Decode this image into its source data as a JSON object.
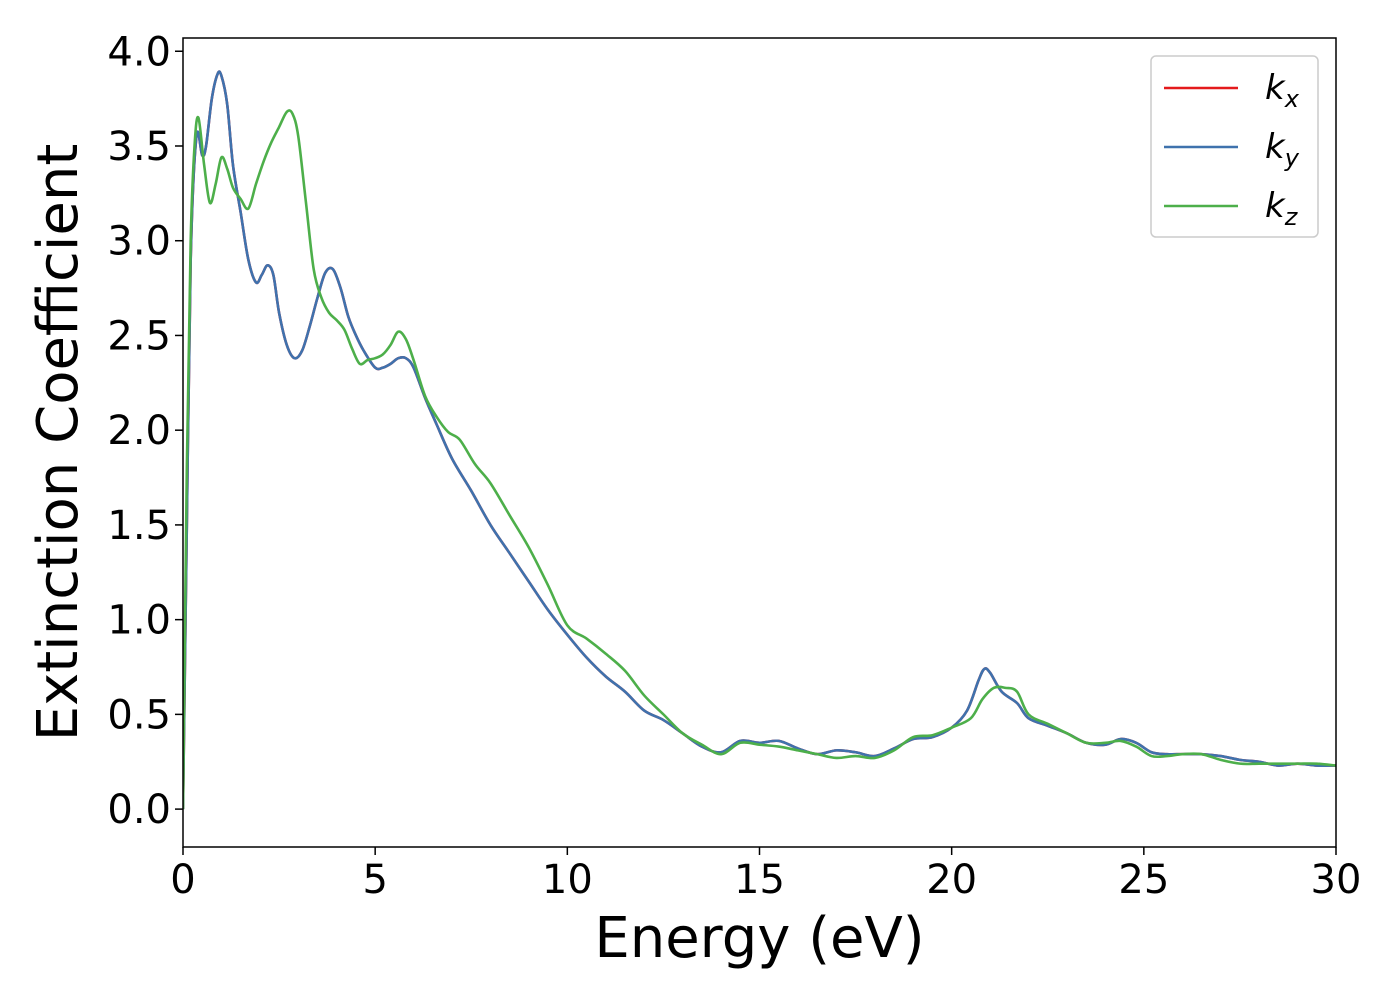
{
  "chart_data": {
    "type": "line",
    "xlabel": "Energy (eV)",
    "ylabel": "Extinction Coefficient",
    "xlim": [
      0,
      30
    ],
    "ylim": [
      -0.2,
      4.07
    ],
    "xticks": [
      0,
      5,
      10,
      15,
      20,
      25,
      30
    ],
    "xtick_labels": [
      "0",
      "5",
      "10",
      "15",
      "20",
      "25",
      "30"
    ],
    "yticks": [
      0.0,
      0.5,
      1.0,
      1.5,
      2.0,
      2.5,
      3.0,
      3.5,
      4.0
    ],
    "ytick_labels": [
      "0.0",
      "0.5",
      "1.0",
      "1.5",
      "2.0",
      "2.5",
      "3.0",
      "3.5",
      "4.0"
    ],
    "grid": false,
    "legend_position": "top-right",
    "series": [
      {
        "name": "k",
        "subscript": "x",
        "color": "#e41a1c",
        "x": [
          0,
          0.1,
          0.2,
          0.35,
          0.5,
          0.6,
          0.75,
          0.9,
          1.0,
          1.15,
          1.3,
          1.5,
          1.7,
          1.9,
          2.05,
          2.2,
          2.35,
          2.5,
          2.7,
          2.9,
          3.1,
          3.3,
          3.5,
          3.7,
          3.9,
          4.1,
          4.3,
          4.5,
          4.7,
          5.0,
          5.2,
          5.4,
          5.6,
          5.8,
          6.0,
          6.3,
          6.6,
          7.0,
          7.5,
          8.0,
          8.5,
          9.0,
          9.5,
          10.0,
          10.5,
          11.0,
          11.5,
          12.0,
          12.5,
          13.0,
          13.5,
          14.0,
          14.5,
          15.0,
          15.5,
          16.0,
          16.5,
          17.0,
          17.5,
          18.0,
          18.5,
          19.0,
          19.5,
          20.0,
          20.4,
          20.7,
          20.85,
          21.0,
          21.3,
          21.7,
          22.0,
          22.5,
          23.0,
          23.5,
          24.0,
          24.4,
          24.8,
          25.2,
          25.6,
          26.0,
          26.5,
          27.0,
          27.5,
          28.0,
          28.5,
          29.0,
          29.5,
          30.0
        ],
        "y": [
          0.0,
          1.5,
          2.9,
          3.55,
          3.45,
          3.5,
          3.75,
          3.88,
          3.87,
          3.72,
          3.4,
          3.15,
          2.9,
          2.78,
          2.82,
          2.87,
          2.82,
          2.62,
          2.45,
          2.38,
          2.42,
          2.55,
          2.7,
          2.83,
          2.85,
          2.75,
          2.6,
          2.5,
          2.42,
          2.33,
          2.33,
          2.35,
          2.38,
          2.38,
          2.33,
          2.17,
          2.03,
          1.85,
          1.68,
          1.5,
          1.35,
          1.2,
          1.05,
          0.92,
          0.8,
          0.7,
          0.62,
          0.52,
          0.47,
          0.4,
          0.33,
          0.3,
          0.36,
          0.35,
          0.36,
          0.32,
          0.29,
          0.31,
          0.3,
          0.28,
          0.32,
          0.37,
          0.38,
          0.43,
          0.52,
          0.68,
          0.74,
          0.72,
          0.62,
          0.56,
          0.48,
          0.44,
          0.4,
          0.35,
          0.34,
          0.37,
          0.35,
          0.3,
          0.29,
          0.29,
          0.29,
          0.28,
          0.26,
          0.25,
          0.23,
          0.24,
          0.23,
          0.23
        ]
      },
      {
        "name": "k",
        "subscript": "y",
        "color": "#3f72ad",
        "x": [
          0,
          0.1,
          0.2,
          0.35,
          0.5,
          0.6,
          0.75,
          0.9,
          1.0,
          1.15,
          1.3,
          1.5,
          1.7,
          1.9,
          2.05,
          2.2,
          2.35,
          2.5,
          2.7,
          2.9,
          3.1,
          3.3,
          3.5,
          3.7,
          3.9,
          4.1,
          4.3,
          4.5,
          4.7,
          5.0,
          5.2,
          5.4,
          5.6,
          5.8,
          6.0,
          6.3,
          6.6,
          7.0,
          7.5,
          8.0,
          8.5,
          9.0,
          9.5,
          10.0,
          10.5,
          11.0,
          11.5,
          12.0,
          12.5,
          13.0,
          13.5,
          14.0,
          14.5,
          15.0,
          15.5,
          16.0,
          16.5,
          17.0,
          17.5,
          18.0,
          18.5,
          19.0,
          19.5,
          20.0,
          20.4,
          20.7,
          20.85,
          21.0,
          21.3,
          21.7,
          22.0,
          22.5,
          23.0,
          23.5,
          24.0,
          24.4,
          24.8,
          25.2,
          25.6,
          26.0,
          26.5,
          27.0,
          27.5,
          28.0,
          28.5,
          29.0,
          29.5,
          30.0
        ],
        "y": [
          0.0,
          1.5,
          2.9,
          3.55,
          3.45,
          3.5,
          3.75,
          3.88,
          3.87,
          3.72,
          3.4,
          3.15,
          2.9,
          2.78,
          2.82,
          2.87,
          2.82,
          2.62,
          2.45,
          2.38,
          2.42,
          2.55,
          2.7,
          2.83,
          2.85,
          2.75,
          2.6,
          2.5,
          2.42,
          2.33,
          2.33,
          2.35,
          2.38,
          2.38,
          2.33,
          2.17,
          2.03,
          1.85,
          1.68,
          1.5,
          1.35,
          1.2,
          1.05,
          0.92,
          0.8,
          0.7,
          0.62,
          0.52,
          0.47,
          0.4,
          0.33,
          0.3,
          0.36,
          0.35,
          0.36,
          0.32,
          0.29,
          0.31,
          0.3,
          0.28,
          0.32,
          0.37,
          0.38,
          0.43,
          0.52,
          0.68,
          0.74,
          0.72,
          0.62,
          0.56,
          0.48,
          0.44,
          0.4,
          0.35,
          0.34,
          0.37,
          0.35,
          0.3,
          0.29,
          0.29,
          0.29,
          0.28,
          0.26,
          0.25,
          0.23,
          0.24,
          0.23,
          0.23
        ]
      },
      {
        "name": "k",
        "subscript": "z",
        "color": "#4daf4a",
        "x": [
          0,
          0.1,
          0.2,
          0.3,
          0.4,
          0.55,
          0.7,
          0.85,
          1.0,
          1.15,
          1.3,
          1.5,
          1.7,
          1.9,
          2.1,
          2.3,
          2.5,
          2.7,
          2.85,
          3.0,
          3.2,
          3.4,
          3.6,
          3.8,
          4.0,
          4.2,
          4.4,
          4.6,
          4.8,
          5.0,
          5.2,
          5.4,
          5.6,
          5.8,
          6.0,
          6.3,
          6.6,
          6.9,
          7.2,
          7.6,
          8.0,
          8.5,
          9.0,
          9.5,
          10.0,
          10.5,
          11.0,
          11.5,
          12.0,
          12.5,
          13.0,
          13.5,
          14.0,
          14.5,
          15.0,
          15.5,
          16.0,
          16.5,
          17.0,
          17.5,
          18.0,
          18.5,
          19.0,
          19.5,
          20.0,
          20.5,
          20.8,
          21.1,
          21.4,
          21.7,
          22.0,
          22.5,
          23.0,
          23.5,
          24.0,
          24.4,
          24.8,
          25.2,
          25.6,
          26.0,
          26.5,
          27.0,
          27.5,
          28.0,
          28.5,
          29.0,
          29.5,
          30.0
        ],
        "y": [
          0.0,
          1.8,
          3.0,
          3.5,
          3.65,
          3.4,
          3.2,
          3.3,
          3.44,
          3.38,
          3.28,
          3.22,
          3.17,
          3.3,
          3.42,
          3.52,
          3.6,
          3.68,
          3.67,
          3.55,
          3.2,
          2.85,
          2.7,
          2.62,
          2.58,
          2.53,
          2.43,
          2.35,
          2.37,
          2.38,
          2.4,
          2.45,
          2.52,
          2.48,
          2.37,
          2.18,
          2.07,
          1.99,
          1.95,
          1.82,
          1.72,
          1.55,
          1.38,
          1.18,
          0.97,
          0.9,
          0.82,
          0.73,
          0.6,
          0.5,
          0.4,
          0.34,
          0.29,
          0.35,
          0.34,
          0.33,
          0.31,
          0.29,
          0.27,
          0.28,
          0.27,
          0.31,
          0.38,
          0.39,
          0.43,
          0.48,
          0.58,
          0.64,
          0.64,
          0.62,
          0.5,
          0.45,
          0.4,
          0.35,
          0.35,
          0.36,
          0.33,
          0.28,
          0.28,
          0.29,
          0.29,
          0.26,
          0.24,
          0.24,
          0.24,
          0.24,
          0.24,
          0.23
        ]
      }
    ]
  }
}
